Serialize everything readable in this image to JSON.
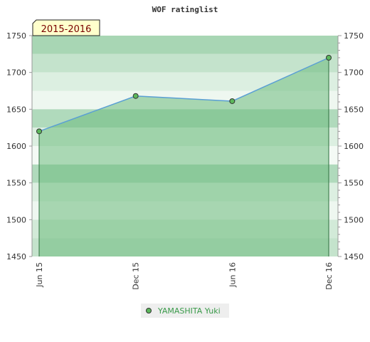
{
  "chart_data": {
    "type": "area",
    "title": "WOF ratinglist",
    "period_label": "2015-2016",
    "categories": [
      "Jun 15",
      "Dec 15",
      "Jun 16",
      "Dec 16"
    ],
    "series": [
      {
        "name": "YAMASHITA Yuki",
        "values": [
          1620,
          1668,
          1661,
          1720
        ]
      }
    ],
    "ylim": [
      1450,
      1750
    ],
    "yticks": [
      "1450",
      "1500",
      "1550",
      "1600",
      "1650",
      "1700",
      "1750"
    ],
    "grid": true,
    "legend": "bottom-center",
    "colors": {
      "line": "#5a9fd4",
      "marker_fill": "#5cb85c",
      "area_fill": "#6dbb7d",
      "badge_bg": "#ffffcc",
      "badge_text": "#7a0000",
      "legend_text": "#3a9a4a"
    }
  }
}
